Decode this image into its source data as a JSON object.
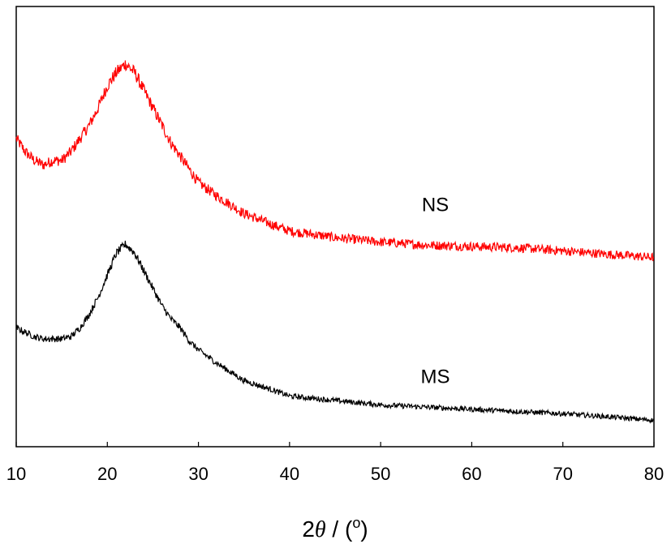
{
  "chart_data": {
    "type": "line",
    "title": "",
    "xlabel": {
      "prefix": "2",
      "symbol": "θ",
      "sep": " / (",
      "unit": "o",
      "suffix": ")"
    },
    "ylabel": "",
    "xlim": [
      10,
      80
    ],
    "xticks": [
      "10",
      "20",
      "30",
      "40",
      "50",
      "60",
      "70",
      "80"
    ],
    "yticks_shown": false,
    "grid": false,
    "legend": "none",
    "series": [
      {
        "name": "NS",
        "color": "#ff0000",
        "noise": 0.022,
        "points": [
          [
            10,
            0.7
          ],
          [
            11,
            0.67
          ],
          [
            12,
            0.65
          ],
          [
            13,
            0.64
          ],
          [
            14,
            0.65
          ],
          [
            15,
            0.65
          ],
          [
            16,
            0.67
          ],
          [
            17,
            0.7
          ],
          [
            18,
            0.73
          ],
          [
            19,
            0.77
          ],
          [
            20,
            0.82
          ],
          [
            21,
            0.85
          ],
          [
            22,
            0.87
          ],
          [
            23,
            0.85
          ],
          [
            24,
            0.81
          ],
          [
            25,
            0.77
          ],
          [
            26,
            0.73
          ],
          [
            27,
            0.69
          ],
          [
            28,
            0.66
          ],
          [
            29,
            0.63
          ],
          [
            30,
            0.6
          ],
          [
            32,
            0.57
          ],
          [
            35,
            0.53
          ],
          [
            38,
            0.505
          ],
          [
            40,
            0.49
          ],
          [
            45,
            0.475
          ],
          [
            50,
            0.465
          ],
          [
            55,
            0.458
          ],
          [
            60,
            0.455
          ],
          [
            65,
            0.452
          ],
          [
            70,
            0.445
          ],
          [
            75,
            0.437
          ],
          [
            80,
            0.43
          ]
        ]
      },
      {
        "name": "MS",
        "color": "#000000",
        "noise": 0.02,
        "points": [
          [
            10,
            0.27
          ],
          [
            11,
            0.26
          ],
          [
            12,
            0.25
          ],
          [
            13,
            0.245
          ],
          [
            14,
            0.245
          ],
          [
            15,
            0.245
          ],
          [
            16,
            0.25
          ],
          [
            17,
            0.27
          ],
          [
            18,
            0.3
          ],
          [
            19,
            0.34
          ],
          [
            20,
            0.39
          ],
          [
            21,
            0.44
          ],
          [
            22,
            0.46
          ],
          [
            23,
            0.44
          ],
          [
            24,
            0.4
          ],
          [
            25,
            0.36
          ],
          [
            26,
            0.32
          ],
          [
            27,
            0.29
          ],
          [
            28,
            0.27
          ],
          [
            29,
            0.24
          ],
          [
            30,
            0.22
          ],
          [
            32,
            0.19
          ],
          [
            35,
            0.15
          ],
          [
            38,
            0.13
          ],
          [
            40,
            0.115
          ],
          [
            45,
            0.105
          ],
          [
            50,
            0.095
          ],
          [
            55,
            0.09
          ],
          [
            60,
            0.085
          ],
          [
            65,
            0.08
          ],
          [
            70,
            0.075
          ],
          [
            75,
            0.068
          ],
          [
            80,
            0.06
          ]
        ]
      }
    ],
    "annotations": [
      {
        "text": "NS",
        "x": 56,
        "y": 0.535
      },
      {
        "text": "MS",
        "x": 56,
        "y": 0.145
      }
    ]
  }
}
